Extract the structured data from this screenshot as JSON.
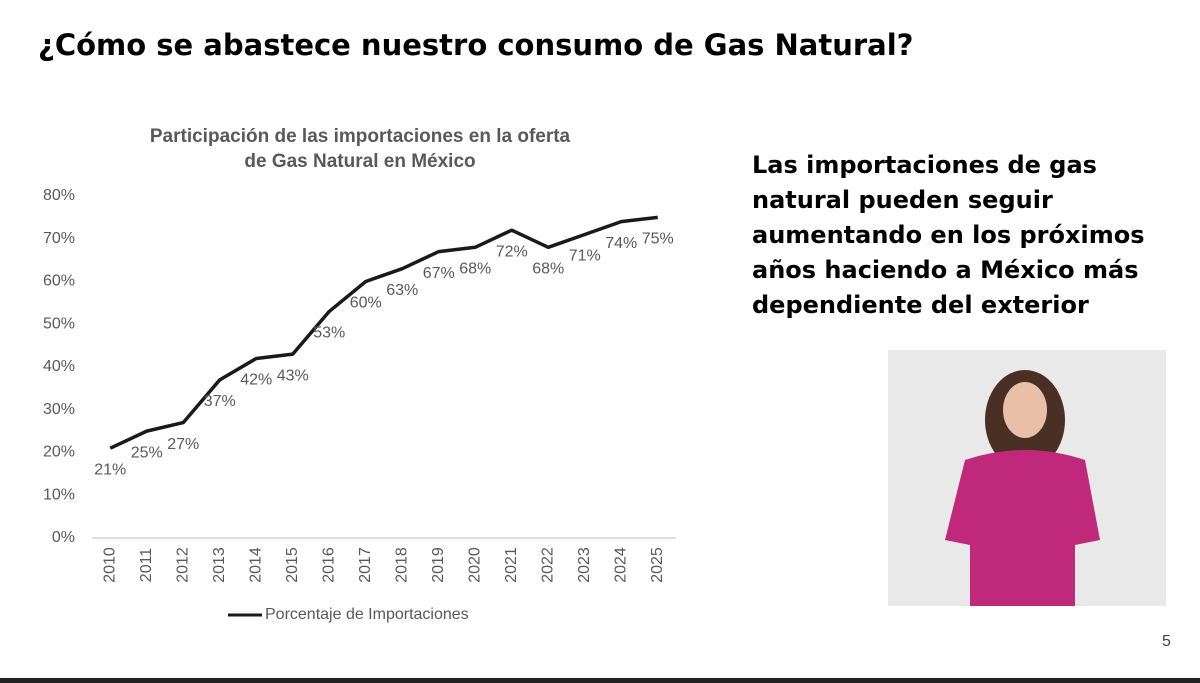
{
  "slide_title": "¿Cómo se abastece nuestro consumo de Gas Natural?",
  "side_text": "Las importaciones de gas natural pueden seguir aumentando en los próximos años haciendo a México más dependiente del exterior",
  "page_number": "5",
  "chart_data": {
    "type": "line",
    "title": [
      "Participación de las importaciones en la oferta",
      "de Gas Natural en  México"
    ],
    "categories": [
      "2010",
      "2011",
      "2012",
      "2013",
      "2014",
      "2015",
      "2016",
      "2017",
      "2018",
      "2019",
      "2020",
      "2021",
      "2022",
      "2023",
      "2024",
      "2025"
    ],
    "series": [
      {
        "name": "Porcentaje de Importaciones",
        "color": "#1a1a1a",
        "values": [
          21,
          25,
          27,
          37,
          42,
          43,
          53,
          60,
          63,
          67,
          68,
          72,
          68,
          71,
          74,
          75
        ],
        "value_labels": [
          "21%",
          "25%",
          "27%",
          "37%",
          "42%",
          "43%",
          "53%",
          "60%",
          "63%",
          "67%",
          "68%",
          "72%",
          "68%",
          "71%",
          "74%",
          "75%"
        ]
      }
    ],
    "ylim": [
      0,
      80
    ],
    "yticks": [
      {
        "value": 0,
        "label": "0%"
      },
      {
        "value": 10,
        "label": "10%"
      },
      {
        "value": 20,
        "label": "20%"
      },
      {
        "value": 30,
        "label": "30%"
      },
      {
        "value": 40,
        "label": "40%"
      },
      {
        "value": 50,
        "label": "50%"
      },
      {
        "value": 60,
        "label": "60%"
      },
      {
        "value": 70,
        "label": "70%"
      },
      {
        "value": 80,
        "label": "80%"
      }
    ],
    "grid": false
  }
}
